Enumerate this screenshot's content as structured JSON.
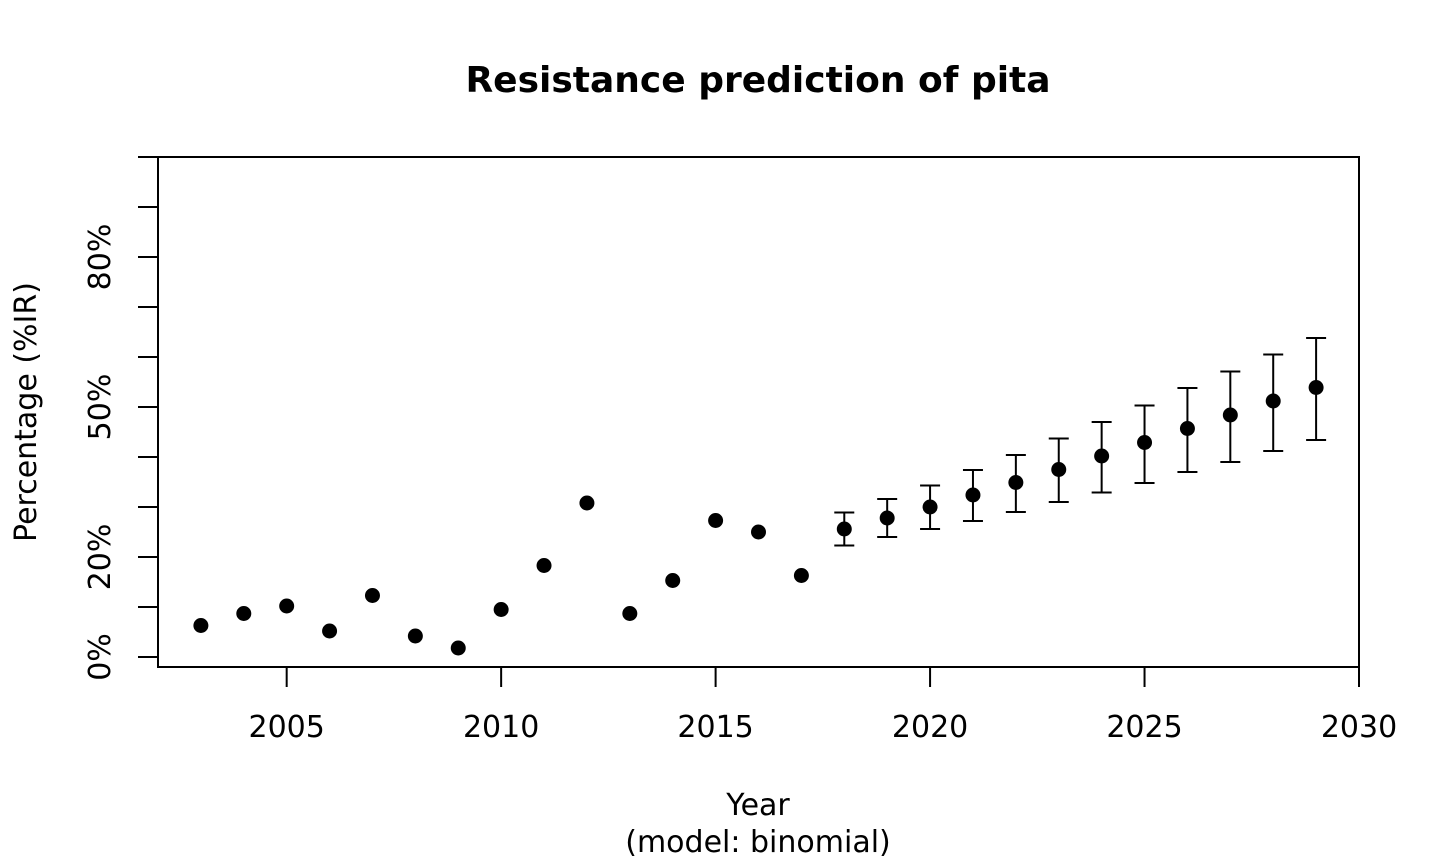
{
  "chart_data": {
    "type": "scatter",
    "title": "Resistance prediction of pita",
    "xlabel": "Year",
    "xlabel_sub": "(model: binomial)",
    "ylabel": "Percentage (%IR)",
    "xlim": [
      2002,
      2030
    ],
    "ylim": [
      -0.02,
      1.0
    ],
    "x_ticks": [
      2005,
      2010,
      2015,
      2020,
      2025,
      2030
    ],
    "x_tick_labels": [
      "2005",
      "2010",
      "2015",
      "2020",
      "2025",
      "2030"
    ],
    "y_ticks": [
      0.0,
      0.1,
      0.2,
      0.3,
      0.4,
      0.5,
      0.6,
      0.7,
      0.8,
      0.9,
      1.0
    ],
    "y_tick_labels": [
      "0%",
      "",
      "20%",
      "",
      "",
      "50%",
      "",
      "",
      "80%",
      "",
      ""
    ],
    "grid": false,
    "observed": {
      "x": [
        2003,
        2004,
        2005,
        2006,
        2007,
        2008,
        2009,
        2010,
        2011,
        2012,
        2013,
        2014,
        2015,
        2016,
        2017
      ],
      "y": [
        0.063,
        0.087,
        0.102,
        0.052,
        0.123,
        0.042,
        0.018,
        0.095,
        0.183,
        0.308,
        0.087,
        0.153,
        0.273,
        0.25,
        0.163
      ]
    },
    "predicted": {
      "x": [
        2018,
        2019,
        2020,
        2021,
        2022,
        2023,
        2024,
        2025,
        2026,
        2027,
        2028,
        2029
      ],
      "y": [
        0.256,
        0.278,
        0.3,
        0.324,
        0.349,
        0.375,
        0.402,
        0.429,
        0.457,
        0.484,
        0.512,
        0.539
      ],
      "lower": [
        0.223,
        0.24,
        0.256,
        0.272,
        0.29,
        0.31,
        0.329,
        0.348,
        0.37,
        0.39,
        0.412,
        0.434
      ],
      "upper": [
        0.289,
        0.316,
        0.343,
        0.374,
        0.404,
        0.437,
        0.47,
        0.503,
        0.538,
        0.571,
        0.605,
        0.638
      ]
    },
    "point_color": "#000000"
  }
}
